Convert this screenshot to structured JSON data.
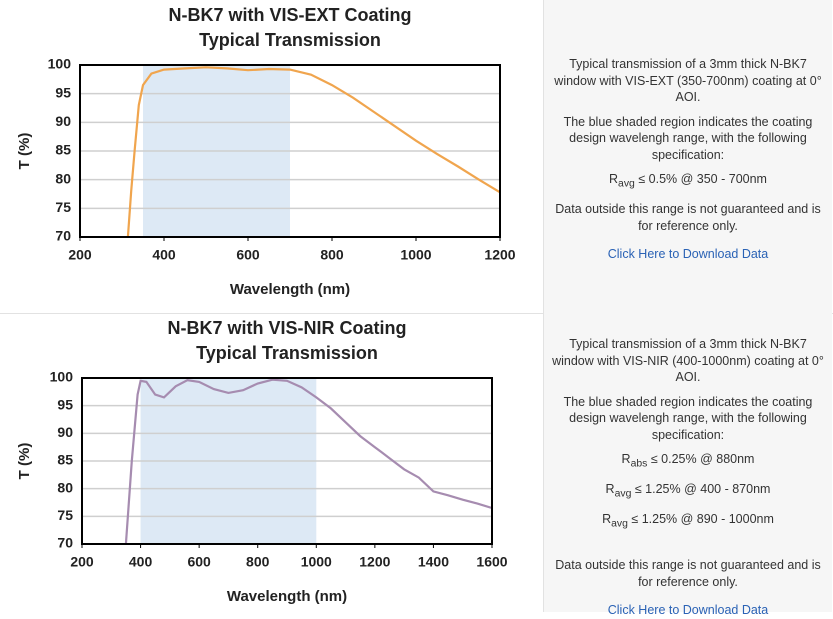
{
  "chart_data": [
    {
      "type": "line",
      "title": "N-BK7 with VIS-EXT Coating",
      "subtitle": "Typical Transmission",
      "xlabel": "Wavelength (nm)",
      "ylabel": "T (%)",
      "color": "#f0a54e",
      "shade_color": "#dde9f5",
      "shade": [
        350,
        700
      ],
      "x": [
        314,
        322,
        330,
        340,
        350,
        370,
        400,
        450,
        500,
        550,
        600,
        650,
        700,
        750,
        800,
        850,
        900,
        950,
        1000,
        1050,
        1100,
        1150,
        1200
      ],
      "values": [
        70,
        78,
        85,
        93,
        96.5,
        98.5,
        99.2,
        99.4,
        99.6,
        99.4,
        99.1,
        99.3,
        99.2,
        98.3,
        96.5,
        94.3,
        91.8,
        89.3,
        86.8,
        84.5,
        82.3,
        80,
        77.8
      ],
      "xlim": [
        200,
        1200
      ],
      "ylim": [
        70,
        100
      ],
      "xticks": [
        200,
        400,
        600,
        800,
        1000,
        1200
      ],
      "yticks": [
        70,
        75,
        80,
        85,
        90,
        95,
        100
      ],
      "grid": true
    },
    {
      "type": "line",
      "title": "N-BK7 with VIS-NIR Coating",
      "subtitle": "Typical Transmission",
      "xlabel": "Wavelength (nm)",
      "ylabel": "T (%)",
      "color": "#a68cb0",
      "shade_color": "#dde9f5",
      "shade": [
        400,
        1000
      ],
      "x": [
        350,
        370,
        390,
        400,
        420,
        450,
        480,
        520,
        560,
        600,
        650,
        700,
        750,
        800,
        850,
        900,
        950,
        1000,
        1050,
        1100,
        1150,
        1200,
        1250,
        1300,
        1350,
        1400,
        1450,
        1500,
        1550,
        1600
      ],
      "values": [
        70,
        85,
        97,
        99.5,
        99.3,
        97,
        96.5,
        98.5,
        99.6,
        99.3,
        98,
        97.3,
        97.8,
        99,
        99.7,
        99.5,
        98.3,
        96.5,
        94.5,
        92,
        89.5,
        87.5,
        85.5,
        83.5,
        82,
        79.5,
        78.8,
        78,
        77.3,
        76.5
      ],
      "xlim": [
        200,
        1600
      ],
      "ylim": [
        70,
        100
      ],
      "xticks": [
        200,
        400,
        600,
        800,
        1000,
        1200,
        1400,
        1600
      ],
      "yticks": [
        70,
        75,
        80,
        85,
        90,
        95,
        100
      ],
      "grid": true
    }
  ],
  "panels": [
    {
      "intro": "Typical transmission of a 3mm thick N-BK7 window with VIS-EXT (350-700nm) coating at 0° AOI.",
      "shade_note": "The blue shaded region indicates the coating design wavelengh range, with the following specification:",
      "specs": [
        {
          "symbol": "R",
          "sub": "avg",
          "text": "≤ 0.5% @ 350 - 700nm"
        }
      ],
      "disclaimer": "Data outside this range is not guaranteed and is for reference only.",
      "link": "Click Here to Download Data"
    },
    {
      "intro": "Typical transmission of a 3mm thick N-BK7 window with VIS-NIR (400-1000nm) coating at 0° AOI.",
      "shade_note": "The blue shaded region indicates the coating design wavelengh range, with the following specification:",
      "specs": [
        {
          "symbol": "R",
          "sub": "abs",
          "text": "≤ 0.25% @ 880nm"
        },
        {
          "symbol": "R",
          "sub": "avg",
          "text": "≤ 1.25% @ 400 - 870nm"
        },
        {
          "symbol": "R",
          "sub": "avg",
          "text": "≤ 1.25% @ 890 - 1000nm"
        }
      ],
      "disclaimer": "Data outside this range is not guaranteed and is for reference only.",
      "link": "Click Here to Download Data"
    }
  ]
}
